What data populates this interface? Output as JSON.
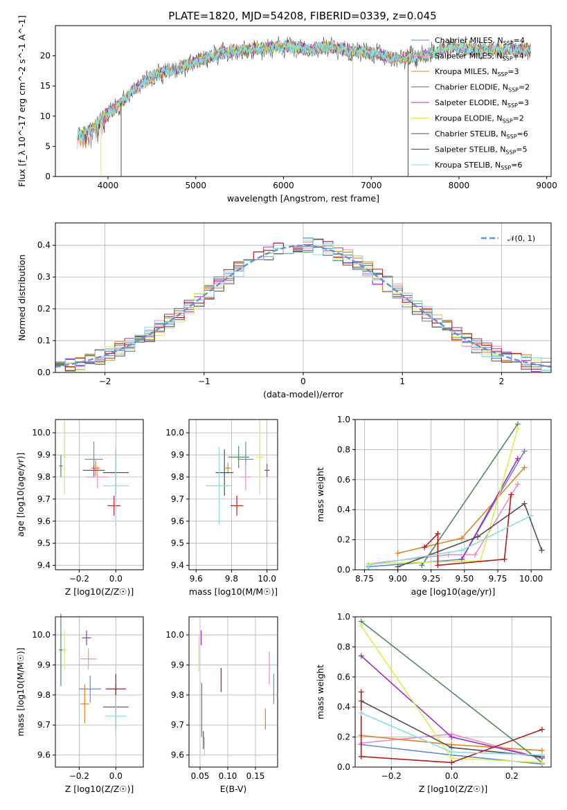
{
  "title": "PLATE=1820, MJD=54208, FIBERID=0339, z=0.045",
  "colors": [
    "#6688cc",
    "#e98fbe",
    "#e08020",
    "#508a60",
    "#9b30c0",
    "#d8ee50",
    "#505050",
    "#b01818",
    "#88dde0"
  ],
  "legend_spectrum": [
    [
      "Chabrier MILES, N",
      "SSP",
      "=4"
    ],
    [
      "Salpeter MILES, N",
      "SSP",
      "=4"
    ],
    [
      "Kroupa MILES, N",
      "SSP",
      "=3"
    ],
    [
      "Chabrier ELODIE, N",
      "SSP",
      "=2"
    ],
    [
      "Salpeter ELODIE, N",
      "SSP",
      "=3"
    ],
    [
      "Kroupa ELODIE, N",
      "SSP",
      "=2"
    ],
    [
      "Chabrier STELIB, N",
      "SSP",
      "=6"
    ],
    [
      "Salpeter STELIB, N",
      "SSP",
      "=5"
    ],
    [
      "Kroupa STELIB, N",
      "SSP",
      "=6"
    ]
  ],
  "legend_resid": "𝒩(0, 1)",
  "chart_data": [
    {
      "type": "line",
      "name": "spectrum",
      "xlabel": "wavelength [Angstrom, rest frame]",
      "ylabel": "Flux [f_λ 10^-17 erg cm^-2 s^-1 A^-1]",
      "xlim": [
        3400,
        9050
      ],
      "ylim": [
        0,
        25
      ],
      "xticks": [
        4000,
        5000,
        6000,
        7000,
        8000,
        9000
      ],
      "yticks": [
        0,
        5,
        10,
        15,
        20
      ],
      "continuum": [
        [
          3650,
          7
        ],
        [
          3800,
          7.5
        ],
        [
          3950,
          10
        ],
        [
          4100,
          11.5
        ],
        [
          4300,
          14.5
        ],
        [
          4500,
          16.5
        ],
        [
          4800,
          18
        ],
        [
          5000,
          19
        ],
        [
          5300,
          20.5
        ],
        [
          5600,
          21
        ],
        [
          6000,
          21.5
        ],
        [
          6300,
          21
        ],
        [
          6500,
          21.5
        ],
        [
          6700,
          21
        ],
        [
          7000,
          20.5
        ],
        [
          7300,
          19.5
        ],
        [
          7600,
          20
        ],
        [
          7900,
          21.5
        ],
        [
          8200,
          21
        ],
        [
          8500,
          21
        ],
        [
          8800,
          21
        ]
      ],
      "spikes_down": [
        [
          3920,
          0
        ],
        [
          4150,
          0
        ],
        [
          6790,
          0
        ],
        [
          7420,
          0
        ]
      ]
    },
    {
      "type": "bar",
      "name": "residual-histogram",
      "xlabel": "(data-model)/error",
      "ylabel": "Normed distribution",
      "xlim": [
        -2.5,
        2.5
      ],
      "ylim": [
        0,
        0.47
      ],
      "xticks": [
        -2,
        -1,
        0,
        1,
        2
      ],
      "yticks": [
        0.0,
        0.1,
        0.2,
        0.3,
        0.4
      ],
      "bin_width": 0.1,
      "curve": "normal(0,1)"
    },
    {
      "type": "scatter",
      "name": "age-vs-metallicity",
      "xlabel": "Z [log10(Z/Z☉)]",
      "ylabel": "age  [log10(age/yr)]",
      "xlim": [
        -0.33,
        0.15
      ],
      "ylim": [
        9.38,
        10.06
      ],
      "xticks": [
        -0.2,
        0.0
      ],
      "yticks": [
        9.4,
        9.5,
        9.6,
        9.7,
        9.8,
        9.9,
        10.0
      ],
      "points": [
        [
          -0.12,
          9.88,
          0.1,
          0.16
        ],
        [
          -0.1,
          9.8,
          0.12,
          0.1
        ],
        [
          -0.11,
          9.84,
          0.05,
          0.07
        ],
        [
          -0.3,
          9.85,
          0.02,
          0.1
        ],
        [
          -0.12,
          9.83,
          0.12,
          0.05
        ],
        [
          -0.28,
          9.89,
          0.02,
          0.34
        ],
        [
          0.0,
          9.82,
          0.14,
          0.21
        ],
        [
          -0.01,
          9.67,
          0.07,
          0.09
        ],
        [
          0.0,
          9.76,
          0.14,
          0.35
        ]
      ]
    },
    {
      "type": "scatter",
      "name": "age-vs-mass",
      "xlabel": "mass [log10(M/M☉)]",
      "ylabel": "",
      "xlim": [
        9.56,
        10.06
      ],
      "ylim": [
        9.38,
        10.06
      ],
      "xticks": [
        9.6,
        9.8,
        10.0
      ],
      "yticks": [
        9.4,
        9.5,
        9.6,
        9.7,
        9.8,
        9.9,
        10.0
      ],
      "points": [
        [
          9.88,
          9.88,
          0.09,
          0.16
        ],
        [
          9.88,
          9.8,
          0.06,
          0.12
        ],
        [
          9.78,
          9.84,
          0.03,
          0.05
        ],
        [
          9.84,
          9.89,
          0.12,
          0.1
        ],
        [
          10.0,
          9.83,
          0.03,
          0.06
        ],
        [
          9.96,
          9.89,
          0.04,
          0.34
        ],
        [
          9.76,
          9.82,
          0.1,
          0.21
        ],
        [
          9.83,
          9.67,
          0.07,
          0.09
        ],
        [
          9.73,
          9.76,
          0.15,
          0.35
        ]
      ]
    },
    {
      "type": "line",
      "name": "mass-weight-vs-age",
      "xlabel": "age  [log10(age/yr)]",
      "ylabel": "mass weight",
      "xlim": [
        8.68,
        10.15
      ],
      "ylim": [
        0,
        1
      ],
      "xticks": [
        8.75,
        9.0,
        9.25,
        9.5,
        9.75,
        10.0
      ],
      "yticks": [
        0.0,
        0.2,
        0.4,
        0.6,
        0.8,
        1.0
      ],
      "series": [
        {
          "x": [
            8.78,
            9.48,
            9.95
          ],
          "y": [
            0.02,
            0.07,
            0.79
          ]
        },
        {
          "x": [
            8.78,
            9.38,
            9.58,
            9.9
          ],
          "y": [
            0.04,
            0.1,
            0.1,
            0.57
          ]
        },
        {
          "x": [
            9.0,
            9.48,
            9.95
          ],
          "y": [
            0.11,
            0.21,
            0.68
          ]
        },
        {
          "x": [
            9.18,
            9.9
          ],
          "y": [
            0.03,
            0.97
          ]
        },
        {
          "x": [
            9.48,
            9.9
          ],
          "y": [
            0.07,
            0.74
          ]
        },
        {
          "x": [
            8.78,
            9.62,
            9.9
          ],
          "y": [
            0.04,
            0.06,
            0.94
          ]
        },
        {
          "x": [
            9.0,
            9.6,
            9.95,
            10.08
          ],
          "y": [
            0.02,
            0.22,
            0.44,
            0.13
          ]
        },
        {
          "x": [
            9.2,
            9.3,
            9.3,
            9.8,
            9.85
          ],
          "y": [
            0.15,
            0.24,
            0.03,
            0.07,
            0.5
          ]
        },
        {
          "x": [
            8.78,
            9.48,
            10.0
          ],
          "y": [
            0.03,
            0.13,
            0.36
          ]
        }
      ]
    },
    {
      "type": "scatter",
      "name": "mass-vs-metallicity",
      "xlabel": "Z [log10(Z/Z☉)]",
      "ylabel": "mass [log10(M/M☉)]",
      "xlim": [
        -0.33,
        0.15
      ],
      "ylim": [
        9.56,
        10.06
      ],
      "xticks": [
        -0.2,
        0.0
      ],
      "yticks": [
        9.6,
        9.7,
        9.8,
        9.9,
        10.0
      ],
      "points": [
        [
          -0.14,
          9.82,
          0.12,
          0.09
        ],
        [
          -0.15,
          9.92,
          0.09,
          0.07
        ],
        [
          -0.17,
          9.77,
          0.05,
          0.13
        ],
        [
          -0.3,
          9.95,
          0.02,
          0.24
        ],
        [
          -0.16,
          9.99,
          0.05,
          0.05
        ],
        [
          -0.28,
          9.95,
          0.02,
          0.13
        ],
        [
          0.0,
          9.76,
          0.14,
          0.15
        ],
        [
          0.0,
          9.82,
          0.11,
          0.1
        ],
        [
          0.0,
          9.73,
          0.12,
          0.14
        ]
      ]
    },
    {
      "type": "scatter",
      "name": "mass-vs-extinction",
      "xlabel": "E(B-V)",
      "ylabel": "",
      "xlim": [
        0.03,
        0.19
      ],
      "ylim": [
        9.56,
        10.06
      ],
      "xticks": [
        0.05,
        0.1,
        0.15
      ],
      "yticks": [
        9.6,
        9.7,
        9.8,
        9.9,
        10.0
      ],
      "points": [
        [
          0.183,
          9.82,
          0,
          0.1
        ],
        [
          0.175,
          9.89,
          0,
          0.11
        ],
        [
          0.168,
          9.72,
          0,
          0.07
        ],
        [
          0.053,
          9.75,
          0,
          0.18
        ],
        [
          0.052,
          9.99,
          0,
          0.05
        ],
        [
          0.048,
          9.94,
          0,
          0.12
        ],
        [
          0.056,
          9.65,
          0,
          0.06
        ],
        [
          0.088,
          9.85,
          0,
          0.08
        ],
        [
          0.058,
          9.63,
          0,
          0.06
        ]
      ]
    },
    {
      "type": "line",
      "name": "mass-weight-vs-metallicity",
      "xlabel": "Z [log10(Z/Z☉)]",
      "ylabel": "mass weight",
      "xlim": [
        -0.32,
        0.33
      ],
      "ylim": [
        0,
        1
      ],
      "xticks": [
        -0.2,
        0.0,
        0.2
      ],
      "yticks": [
        0.0,
        0.2,
        0.4,
        0.6,
        0.8,
        1.0
      ],
      "series": [
        {
          "x": [
            -0.3,
            0.0,
            0.3
          ],
          "y": [
            0.15,
            0.08,
            0.02
          ]
        },
        {
          "x": [
            -0.3,
            0.0,
            0.3
          ],
          "y": [
            0.16,
            0.22,
            0.06
          ]
        },
        {
          "x": [
            -0.3,
            0.0,
            0.3
          ],
          "y": [
            0.21,
            0.15,
            0.11
          ]
        },
        {
          "x": [
            -0.3,
            0.3
          ],
          "y": [
            0.97,
            0.03
          ]
        },
        {
          "x": [
            -0.3,
            0.0,
            0.3
          ],
          "y": [
            0.74,
            0.2,
            0.06
          ]
        },
        {
          "x": [
            -0.3,
            0.0,
            0.3
          ],
          "y": [
            0.94,
            0.06,
            0.03
          ]
        },
        {
          "x": [
            -0.3,
            0.0,
            0.3
          ],
          "y": [
            0.44,
            0.13,
            0.07
          ]
        },
        {
          "x": [
            -0.3,
            -0.3,
            0.0,
            0.3
          ],
          "y": [
            0.5,
            0.07,
            0.03,
            0.25
          ]
        },
        {
          "x": [
            -0.3,
            0.0,
            0.3
          ],
          "y": [
            0.36,
            0.1,
            0.08
          ]
        }
      ]
    }
  ]
}
